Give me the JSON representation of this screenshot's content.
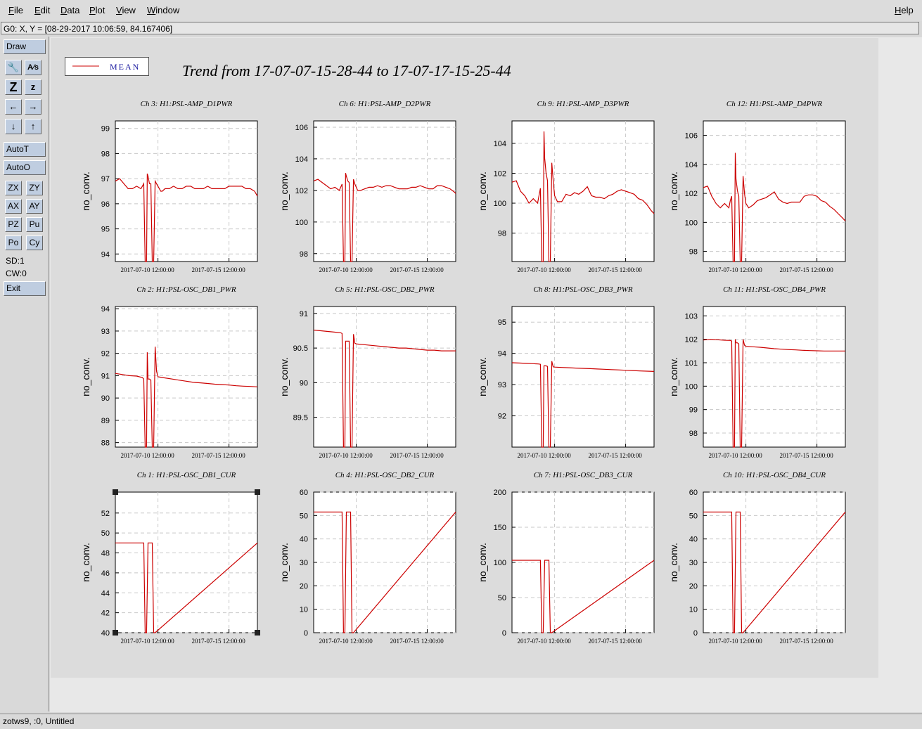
{
  "menu": {
    "file": "File",
    "edit": "Edit",
    "data": "Data",
    "plot": "Plot",
    "view": "View",
    "window": "Window",
    "help": "Help"
  },
  "coord_readout": "G0: X, Y = [08-29-2017 10:06:59, 84.167406]",
  "toolbar": {
    "draw": "Draw",
    "icons": [
      "wrench-icon",
      "text-edit-icon",
      "zoom-in-icon",
      "zoom-out-icon",
      "arrow-left-icon",
      "arrow-right-icon",
      "arrow-down-icon",
      "arrow-up-icon"
    ],
    "icon_glyphs": [
      "🔧",
      "A⁄s",
      "Z",
      "z",
      "←",
      "→",
      "↓",
      "↑"
    ],
    "autoT": "AutoT",
    "autoO": "AutoO",
    "small": [
      "ZX",
      "ZY",
      "AX",
      "AY",
      "PZ",
      "Pu",
      "Po",
      "Cy"
    ],
    "sd": "SD:1",
    "cw": "CW:0",
    "exit": "Exit"
  },
  "legend": {
    "label": "MEAN",
    "color": "#cc0000"
  },
  "title": "Trend from 17-07-07-15-28-44 to 17-07-17-15-25-44",
  "status": "zotws9, :0, Untitled",
  "chart_data": [
    {
      "type": "line",
      "title": "Ch 3: H1:PSL-AMP_D1PWR",
      "ylabel": "no_conv.",
      "ylim": [
        93.7,
        99.3
      ],
      "yticks": [
        94,
        95,
        96,
        97,
        98,
        99
      ],
      "xticks": [
        "2017-07-10 12:00:00",
        "2017-07-15 12:00:00"
      ],
      "grid": true,
      "x": [
        7.0,
        7.3,
        7.6,
        7.9,
        8.2,
        8.5,
        8.8,
        8.9,
        9.0,
        9.1,
        9.2,
        9.25,
        9.3,
        9.4,
        9.5,
        9.6,
        9.7,
        9.8,
        9.9,
        10.0,
        10.1,
        10.2,
        10.3,
        10.5,
        10.8,
        11.1,
        11.4,
        11.7,
        12.0,
        12.3,
        12.6,
        12.9,
        13.2,
        13.5,
        13.8,
        14.1,
        14.4,
        14.7,
        15.0,
        15.3,
        15.6,
        15.9,
        16.2,
        16.5,
        16.8,
        17.0
      ],
      "y": [
        96.9,
        97.0,
        96.8,
        96.6,
        96.6,
        96.7,
        96.6,
        96.7,
        96.8,
        93.7,
        93.7,
        97.2,
        97.1,
        96.8,
        96.8,
        93.7,
        93.7,
        96.9,
        96.8,
        96.7,
        96.6,
        96.5,
        96.5,
        96.6,
        96.6,
        96.7,
        96.6,
        96.6,
        96.7,
        96.7,
        96.6,
        96.6,
        96.6,
        96.7,
        96.6,
        96.6,
        96.6,
        96.6,
        96.7,
        96.7,
        96.7,
        96.7,
        96.6,
        96.6,
        96.5,
        96.3
      ]
    },
    {
      "type": "line",
      "title": "Ch 6: H1:PSL-AMP_D2PWR",
      "ylabel": "no_conv.",
      "ylim": [
        97.5,
        106.4
      ],
      "yticks": [
        98,
        100,
        102,
        104,
        106
      ],
      "xticks": [
        "2017-07-10 12:00:00",
        "2017-07-15 12:00:00"
      ],
      "grid": true,
      "x": [
        7.0,
        7.3,
        7.6,
        7.9,
        8.2,
        8.5,
        8.8,
        8.9,
        9.0,
        9.1,
        9.2,
        9.25,
        9.3,
        9.4,
        9.5,
        9.6,
        9.7,
        9.8,
        9.9,
        10.0,
        10.1,
        10.3,
        10.6,
        10.9,
        11.2,
        11.5,
        11.8,
        12.1,
        12.4,
        12.7,
        13.0,
        13.3,
        13.6,
        13.9,
        14.2,
        14.5,
        14.8,
        15.1,
        15.4,
        15.7,
        16.0,
        16.3,
        16.6,
        16.9,
        17.0
      ],
      "y": [
        102.6,
        102.7,
        102.5,
        102.3,
        102.1,
        102.2,
        102.0,
        102.2,
        102.4,
        97.5,
        97.5,
        103.1,
        102.9,
        102.6,
        102.5,
        97.5,
        97.5,
        102.7,
        102.4,
        102.2,
        102.0,
        102.0,
        102.1,
        102.2,
        102.2,
        102.3,
        102.2,
        102.3,
        102.3,
        102.2,
        102.1,
        102.1,
        102.1,
        102.2,
        102.2,
        102.3,
        102.2,
        102.1,
        102.1,
        102.3,
        102.3,
        102.2,
        102.1,
        101.9,
        101.8
      ]
    },
    {
      "type": "line",
      "title": "Ch 9: H1:PSL-AMP_D3PWR",
      "ylabel": "no_conv.",
      "ylim": [
        96.1,
        105.5
      ],
      "yticks": [
        98,
        100,
        102,
        104
      ],
      "xticks": [
        "2017-07-10 12:00:00",
        "2017-07-15 12:00:00"
      ],
      "grid": true,
      "x": [
        7.0,
        7.3,
        7.6,
        7.9,
        8.2,
        8.5,
        8.8,
        8.9,
        9.0,
        9.1,
        9.2,
        9.25,
        9.3,
        9.4,
        9.5,
        9.6,
        9.7,
        9.8,
        9.9,
        10.0,
        10.2,
        10.5,
        10.8,
        11.1,
        11.4,
        11.7,
        12.0,
        12.3,
        12.6,
        12.9,
        13.2,
        13.5,
        13.8,
        14.1,
        14.4,
        14.7,
        15.0,
        15.3,
        15.6,
        15.9,
        16.2,
        16.5,
        16.8,
        17.0
      ],
      "y": [
        101.4,
        101.5,
        100.8,
        100.5,
        100.0,
        100.3,
        100.0,
        100.5,
        101.0,
        96.1,
        96.1,
        104.8,
        103.0,
        102.0,
        101.5,
        96.1,
        96.1,
        102.7,
        101.5,
        100.5,
        100.1,
        100.1,
        100.6,
        100.5,
        100.7,
        100.6,
        100.8,
        101.1,
        100.5,
        100.4,
        100.4,
        100.3,
        100.5,
        100.6,
        100.8,
        100.9,
        100.8,
        100.7,
        100.6,
        100.3,
        100.2,
        99.9,
        99.5,
        99.3
      ]
    },
    {
      "type": "line",
      "title": "Ch 12: H1:PSL-AMP_D4PWR",
      "ylabel": "no_conv.",
      "ylim": [
        97.3,
        107.0
      ],
      "yticks": [
        98,
        100,
        102,
        104,
        106
      ],
      "xticks": [
        "2017-07-10 12:00:00",
        "2017-07-15 12:00:00"
      ],
      "grid": true,
      "x": [
        7.0,
        7.3,
        7.6,
        7.9,
        8.2,
        8.5,
        8.8,
        8.9,
        9.0,
        9.1,
        9.2,
        9.25,
        9.3,
        9.4,
        9.5,
        9.6,
        9.7,
        9.8,
        9.9,
        10.0,
        10.2,
        10.5,
        10.8,
        11.1,
        11.4,
        11.7,
        12.0,
        12.3,
        12.6,
        12.9,
        13.2,
        13.5,
        13.8,
        14.1,
        14.4,
        14.7,
        15.0,
        15.3,
        15.6,
        15.9,
        16.2,
        16.5,
        16.8,
        17.0
      ],
      "y": [
        102.4,
        102.5,
        101.8,
        101.3,
        101.0,
        101.3,
        101.0,
        101.5,
        101.8,
        97.3,
        97.3,
        104.8,
        103.0,
        102.2,
        101.8,
        97.3,
        97.3,
        103.2,
        102.0,
        101.3,
        101.0,
        101.2,
        101.5,
        101.6,
        101.7,
        101.9,
        102.1,
        101.6,
        101.4,
        101.3,
        101.4,
        101.4,
        101.4,
        101.8,
        101.9,
        101.9,
        101.8,
        101.5,
        101.4,
        101.1,
        100.9,
        100.6,
        100.3,
        100.1
      ]
    },
    {
      "type": "line",
      "title": "Ch 2: H1:PSL-OSC_DB1_PWR",
      "ylabel": "no_conv.",
      "ylim": [
        87.8,
        94.1
      ],
      "yticks": [
        88,
        89,
        90,
        91,
        92,
        93,
        94
      ],
      "xticks": [
        "2017-07-10 12:00:00",
        "2017-07-15 12:00:00"
      ],
      "grid": true,
      "x": [
        7.0,
        7.5,
        8.0,
        8.5,
        8.9,
        9.0,
        9.1,
        9.2,
        9.25,
        9.3,
        9.4,
        9.5,
        9.6,
        9.7,
        9.8,
        9.9,
        10.0,
        10.5,
        11.0,
        11.5,
        12.0,
        12.5,
        13.0,
        13.5,
        14.0,
        14.5,
        15.0,
        15.5,
        16.0,
        16.5,
        17.0
      ],
      "y": [
        91.1,
        91.05,
        91.0,
        90.98,
        90.92,
        90.85,
        87.8,
        87.8,
        92.05,
        90.85,
        90.85,
        90.8,
        87.8,
        87.8,
        92.3,
        91.2,
        90.95,
        90.9,
        90.85,
        90.8,
        90.75,
        90.7,
        90.68,
        90.65,
        90.62,
        90.6,
        90.58,
        90.55,
        90.53,
        90.52,
        90.5
      ]
    },
    {
      "type": "line",
      "title": "Ch 5: H1:PSL-OSC_DB2_PWR",
      "ylabel": "no_conv.",
      "ylim": [
        89.07,
        91.1
      ],
      "yticks": [
        89.5,
        90,
        90.5,
        91
      ],
      "xticks": [
        "2017-07-10 12:00:00",
        "2017-07-15 12:00:00"
      ],
      "grid": true,
      "x": [
        7.0,
        7.5,
        8.0,
        8.5,
        8.9,
        9.0,
        9.1,
        9.2,
        9.25,
        9.3,
        9.4,
        9.5,
        9.6,
        9.7,
        9.8,
        9.9,
        10.0,
        10.5,
        11.0,
        11.5,
        12.0,
        12.5,
        13.0,
        13.5,
        14.0,
        14.5,
        15.0,
        15.5,
        16.0,
        16.5,
        17.0
      ],
      "y": [
        90.76,
        90.75,
        90.74,
        90.73,
        90.72,
        90.71,
        89.07,
        89.07,
        90.6,
        90.6,
        90.6,
        90.6,
        89.07,
        89.07,
        90.7,
        90.57,
        90.56,
        90.55,
        90.54,
        90.53,
        90.52,
        90.51,
        90.5,
        90.5,
        90.49,
        90.48,
        90.47,
        90.47,
        90.46,
        90.46,
        90.46
      ]
    },
    {
      "type": "line",
      "title": "Ch 8: H1:PSL-OSC_DB3_PWR",
      "ylabel": "no_conv.",
      "ylim": [
        91.0,
        95.5
      ],
      "yticks": [
        92,
        93,
        94,
        95
      ],
      "xticks": [
        "2017-07-10 12:00:00",
        "2017-07-15 12:00:00"
      ],
      "grid": true,
      "x": [
        7.0,
        7.5,
        8.0,
        8.5,
        8.9,
        9.0,
        9.1,
        9.2,
        9.25,
        9.3,
        9.4,
        9.5,
        9.6,
        9.7,
        9.8,
        9.9,
        10.0,
        10.5,
        11.0,
        11.5,
        12.0,
        12.5,
        13.0,
        13.5,
        14.0,
        14.5,
        15.0,
        15.5,
        16.0,
        16.5,
        17.0
      ],
      "y": [
        93.7,
        93.69,
        93.68,
        93.67,
        93.66,
        93.65,
        91.0,
        91.0,
        93.6,
        93.6,
        93.6,
        93.58,
        91.0,
        91.0,
        93.75,
        93.57,
        93.56,
        93.55,
        93.54,
        93.53,
        93.52,
        93.51,
        93.5,
        93.49,
        93.48,
        93.47,
        93.46,
        93.45,
        93.44,
        93.43,
        93.42
      ]
    },
    {
      "type": "line",
      "title": "Ch 11: H1:PSL-OSC_DB4_PWR",
      "ylabel": "no_conv.",
      "ylim": [
        97.4,
        103.4
      ],
      "yticks": [
        98,
        99,
        100,
        101,
        102,
        103
      ],
      "xticks": [
        "2017-07-10 12:00:00",
        "2017-07-15 12:00:00"
      ],
      "grid": true,
      "x": [
        7.0,
        7.5,
        8.0,
        8.5,
        8.9,
        9.0,
        9.1,
        9.2,
        9.25,
        9.3,
        9.4,
        9.5,
        9.6,
        9.7,
        9.8,
        9.9,
        10.0,
        10.5,
        11.0,
        11.5,
        12.0,
        12.5,
        13.0,
        13.5,
        14.0,
        14.5,
        15.0,
        15.5,
        16.0,
        16.5,
        17.0
      ],
      "y": [
        101.97,
        102.0,
        101.98,
        101.96,
        101.95,
        101.93,
        97.4,
        97.4,
        102.0,
        101.85,
        101.85,
        101.8,
        97.4,
        97.4,
        102.0,
        101.75,
        101.7,
        101.68,
        101.66,
        101.63,
        101.6,
        101.58,
        101.56,
        101.55,
        101.53,
        101.52,
        101.51,
        101.5,
        101.5,
        101.5,
        101.5
      ]
    },
    {
      "type": "line",
      "title": "Ch 1: H1:PSL-OSC_DB1_CUR",
      "ylabel": "no_conv.",
      "ylim": [
        40,
        54.1
      ],
      "yticks": [
        40,
        42,
        44,
        46,
        48,
        50,
        52
      ],
      "xticks": [
        "2017-07-10 12:00:00",
        "2017-07-15 12:00:00"
      ],
      "grid": true,
      "x": [
        7.0,
        9.0,
        9.1,
        9.2,
        9.3,
        9.6,
        9.7,
        9.8,
        17.0
      ],
      "y": [
        49,
        49,
        40,
        40,
        49,
        49,
        40,
        40,
        49
      ]
    },
    {
      "type": "line",
      "title": "Ch 4: H1:PSL-OSC_DB2_CUR",
      "ylabel": "no_conv.",
      "ylim": [
        0,
        60
      ],
      "yticks": [
        0,
        10,
        20,
        30,
        40,
        50,
        60
      ],
      "xticks": [
        "2017-07-10 12:00:00",
        "2017-07-15 12:00:00"
      ],
      "grid": true,
      "x": [
        7.0,
        9.0,
        9.1,
        9.2,
        9.3,
        9.6,
        9.7,
        9.8,
        17.0
      ],
      "y": [
        51.5,
        51.5,
        0,
        0,
        51.5,
        51.5,
        0,
        0,
        51.5
      ]
    },
    {
      "type": "line",
      "title": "Ch 7: H1:PSL-OSC_DB3_CUR",
      "ylabel": "no_conv.",
      "ylim": [
        0,
        200
      ],
      "yticks": [
        0,
        50,
        100,
        150,
        200
      ],
      "xticks": [
        "2017-07-10 12:00:00",
        "2017-07-15 12:00:00"
      ],
      "grid": true,
      "x": [
        7.0,
        9.0,
        9.1,
        9.2,
        9.3,
        9.6,
        9.65,
        9.7,
        9.8,
        17.0
      ],
      "y": [
        103,
        103,
        0,
        0,
        103,
        103,
        50,
        0,
        0,
        103
      ]
    },
    {
      "type": "line",
      "title": "Ch 10: H1:PSL-OSC_DB4_CUR",
      "ylabel": "no_conv.",
      "ylim": [
        0,
        60
      ],
      "yticks": [
        0,
        10,
        20,
        30,
        40,
        50,
        60
      ],
      "xticks": [
        "2017-07-10 12:00:00",
        "2017-07-15 12:00:00"
      ],
      "grid": true,
      "x": [
        7.0,
        9.0,
        9.1,
        9.2,
        9.3,
        9.6,
        9.7,
        9.8,
        17.0
      ],
      "y": [
        51.5,
        51.5,
        0,
        0,
        51.5,
        51.5,
        0,
        0,
        51.5
      ]
    }
  ]
}
